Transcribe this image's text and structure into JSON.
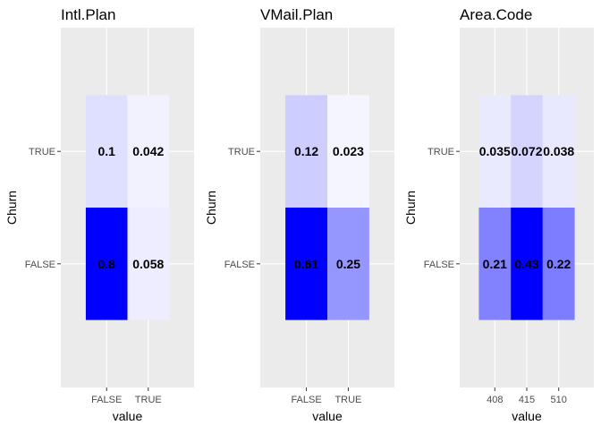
{
  "colors": {
    "panel_bg": "#ebebeb",
    "grid": "#ffffff",
    "low": "#ffffff",
    "high": "#0000ff"
  },
  "chart_data": [
    {
      "type": "heatmap",
      "title": "Intl.Plan",
      "xlabel": "value",
      "ylabel": "Churn",
      "x_categories": [
        "FALSE",
        "TRUE"
      ],
      "y_categories": [
        "FALSE",
        "TRUE"
      ],
      "cells": [
        {
          "x": "FALSE",
          "y": "TRUE",
          "value": 0.1,
          "label": "0.1"
        },
        {
          "x": "TRUE",
          "y": "TRUE",
          "value": 0.042,
          "label": "0.042"
        },
        {
          "x": "FALSE",
          "y": "FALSE",
          "value": 0.8,
          "label": "0.8"
        },
        {
          "x": "TRUE",
          "y": "FALSE",
          "value": 0.058,
          "label": "0.058"
        }
      ]
    },
    {
      "type": "heatmap",
      "title": "VMail.Plan",
      "xlabel": "value",
      "ylabel": "Churn",
      "x_categories": [
        "FALSE",
        "TRUE"
      ],
      "y_categories": [
        "FALSE",
        "TRUE"
      ],
      "cells": [
        {
          "x": "FALSE",
          "y": "TRUE",
          "value": 0.12,
          "label": "0.12"
        },
        {
          "x": "TRUE",
          "y": "TRUE",
          "value": 0.023,
          "label": "0.023"
        },
        {
          "x": "FALSE",
          "y": "FALSE",
          "value": 0.61,
          "label": "0.61"
        },
        {
          "x": "TRUE",
          "y": "FALSE",
          "value": 0.25,
          "label": "0.25"
        }
      ]
    },
    {
      "type": "heatmap",
      "title": "Area.Code",
      "xlabel": "value",
      "ylabel": "Churn",
      "x_categories": [
        "408",
        "415",
        "510"
      ],
      "y_categories": [
        "FALSE",
        "TRUE"
      ],
      "cells": [
        {
          "x": "408",
          "y": "TRUE",
          "value": 0.035,
          "label": "0.035"
        },
        {
          "x": "415",
          "y": "TRUE",
          "value": 0.072,
          "label": "0.072"
        },
        {
          "x": "510",
          "y": "TRUE",
          "value": 0.038,
          "label": "0.038"
        },
        {
          "x": "408",
          "y": "FALSE",
          "value": 0.21,
          "label": "0.21"
        },
        {
          "x": "415",
          "y": "FALSE",
          "value": 0.43,
          "label": "0.43"
        },
        {
          "x": "510",
          "y": "FALSE",
          "value": 0.22,
          "label": "0.22"
        }
      ]
    }
  ]
}
